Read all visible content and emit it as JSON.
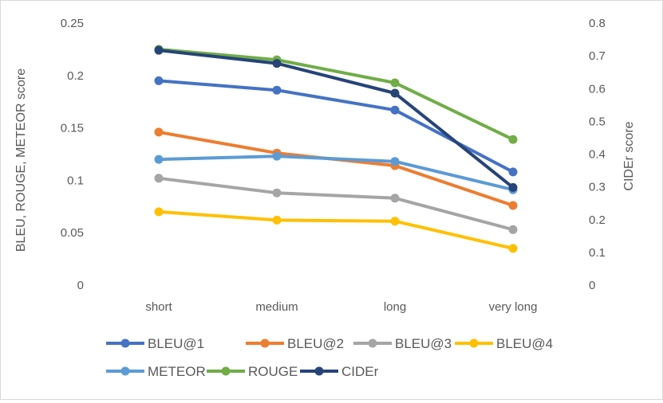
{
  "chart_data": {
    "type": "line",
    "categories": [
      "short",
      "medium",
      "long",
      "very long"
    ],
    "ylabel_left": "BLEU, ROUGE, METEOR score",
    "ylabel_right": "CIDEr score",
    "ylim_left": [
      0,
      0.25
    ],
    "ylim_right": [
      0,
      0.8
    ],
    "yticks_left": [
      "0",
      "0.05",
      "0.1",
      "0.15",
      "0.2",
      "0.25"
    ],
    "yticks_right": [
      "0",
      "0.1",
      "0.2",
      "0.3",
      "0.4",
      "0.5",
      "0.6",
      "0.7",
      "0.8"
    ],
    "grid": false,
    "legend_position": "bottom",
    "series": [
      {
        "name": "BLEU@1",
        "axis": "left",
        "color": "#4472C4",
        "values": [
          0.195,
          0.186,
          0.167,
          0.108
        ]
      },
      {
        "name": "BLEU@2",
        "axis": "left",
        "color": "#ED7D31",
        "values": [
          0.146,
          0.126,
          0.114,
          0.076
        ]
      },
      {
        "name": "BLEU@3",
        "axis": "left",
        "color": "#A5A5A5",
        "values": [
          0.102,
          0.088,
          0.083,
          0.053
        ]
      },
      {
        "name": "BLEU@4",
        "axis": "left",
        "color": "#FFC000",
        "values": [
          0.07,
          0.062,
          0.061,
          0.035
        ]
      },
      {
        "name": "METEOR",
        "axis": "left",
        "color": "#5B9BD5",
        "values": [
          0.12,
          0.123,
          0.118,
          0.091
        ]
      },
      {
        "name": "ROUGE",
        "axis": "left",
        "color": "#70AD47",
        "values": [
          0.225,
          0.215,
          0.193,
          0.139
        ]
      },
      {
        "name": "CIDEr",
        "axis": "right",
        "color": "#264478",
        "values": [
          0.717,
          0.677,
          0.586,
          0.298
        ]
      }
    ]
  }
}
